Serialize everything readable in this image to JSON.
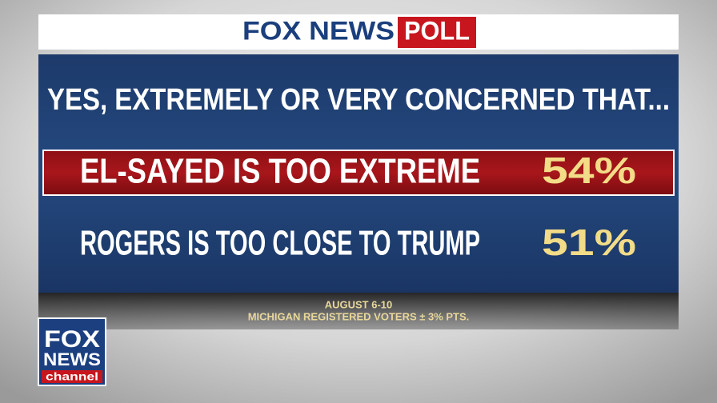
{
  "header": {
    "brand": "FOX NEWS",
    "badge": "POLL"
  },
  "question": "YES, EXTREMELY OR VERY CONCERNED THAT...",
  "rows": [
    {
      "label": "EL-SAYED IS TOO EXTREME",
      "value": "54%"
    },
    {
      "label": "ROGERS IS TOO CLOSE TO TRUMP",
      "value": "51%"
    }
  ],
  "footer": {
    "dates": "AUGUST 6-10",
    "sample": "MICHIGAN REGISTERED VOTERS ± 3% PTS."
  },
  "logo": {
    "line1": "FOX",
    "line2": "NEWS",
    "line3": "channel"
  }
}
